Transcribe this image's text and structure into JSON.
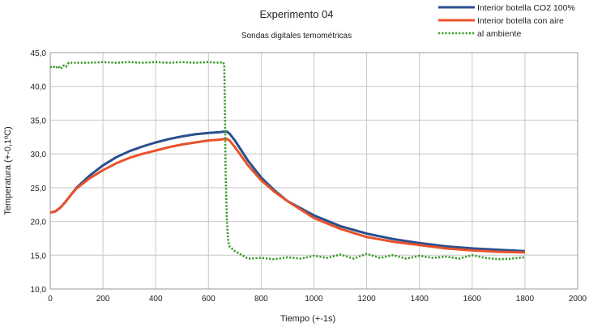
{
  "chart_data": {
    "type": "line",
    "title": "Experimento 04",
    "subtitle": "Sondas digitales temométricas",
    "xlabel": "Tiempo (+-1s)",
    "ylabel": "Temperatura (+-0,1ºC)",
    "xlim": [
      0,
      2000
    ],
    "ylim": [
      10,
      45
    ],
    "xticks": [
      0,
      200,
      400,
      600,
      800,
      1000,
      1200,
      1400,
      1600,
      1800,
      2000
    ],
    "xtick_labels": [
      "0",
      "200",
      "400",
      "600",
      "800",
      "1000",
      "1200",
      "1400",
      "1600",
      "1800",
      "2000"
    ],
    "yticks": [
      10,
      15,
      20,
      25,
      30,
      35,
      40,
      45
    ],
    "ytick_labels": [
      "10,0",
      "15,0",
      "20,0",
      "25,0",
      "30,0",
      "35,0",
      "40,0",
      "45,0"
    ],
    "grid": true,
    "legend_position": "top-right",
    "series": [
      {
        "name": "Interior botella CO2 100%",
        "color": "#2a4f8f",
        "style": "solid",
        "x": [
          0,
          20,
          40,
          60,
          80,
          100,
          150,
          200,
          250,
          300,
          350,
          400,
          450,
          500,
          550,
          600,
          640,
          660,
          670,
          680,
          700,
          750,
          800,
          850,
          900,
          1000,
          1100,
          1200,
          1300,
          1400,
          1500,
          1600,
          1700,
          1800
        ],
        "y": [
          21.3,
          21.5,
          22.1,
          23.0,
          24.0,
          25.0,
          26.8,
          28.3,
          29.5,
          30.4,
          31.1,
          31.7,
          32.2,
          32.6,
          32.9,
          33.1,
          33.2,
          33.3,
          33.3,
          33.0,
          32.0,
          29.0,
          26.5,
          24.6,
          23.0,
          20.9,
          19.3,
          18.2,
          17.4,
          16.8,
          16.3,
          16.0,
          15.8,
          15.6
        ]
      },
      {
        "name": "Interior botella con aire",
        "color": "#e8522a",
        "style": "solid",
        "x": [
          0,
          20,
          40,
          60,
          80,
          100,
          150,
          200,
          250,
          300,
          350,
          400,
          450,
          500,
          550,
          600,
          640,
          660,
          670,
          680,
          700,
          750,
          800,
          850,
          900,
          1000,
          1100,
          1200,
          1300,
          1400,
          1500,
          1600,
          1700,
          1800
        ],
        "y": [
          21.3,
          21.5,
          22.1,
          23.0,
          24.0,
          24.9,
          26.4,
          27.6,
          28.6,
          29.4,
          30.0,
          30.5,
          31.0,
          31.4,
          31.7,
          32.0,
          32.1,
          32.2,
          32.2,
          32.0,
          31.0,
          28.3,
          26.1,
          24.4,
          23.0,
          20.5,
          18.9,
          17.7,
          17.0,
          16.5,
          16.0,
          15.7,
          15.5,
          15.4
        ]
      },
      {
        "name": "al ambiente",
        "color": "#3a9a2a",
        "style": "dotted",
        "x": [
          0,
          10,
          20,
          30,
          40,
          50,
          60,
          70,
          100,
          150,
          200,
          250,
          300,
          350,
          400,
          450,
          500,
          550,
          600,
          640,
          655,
          660,
          662,
          665,
          670,
          675,
          680,
          700,
          750,
          800,
          850,
          900,
          950,
          1000,
          1050,
          1100,
          1150,
          1200,
          1250,
          1300,
          1350,
          1400,
          1450,
          1500,
          1550,
          1600,
          1650,
          1700,
          1750,
          1800
        ],
        "y": [
          42.8,
          43.0,
          42.7,
          43.0,
          42.6,
          43.1,
          42.9,
          43.5,
          43.5,
          43.5,
          43.6,
          43.5,
          43.6,
          43.5,
          43.6,
          43.5,
          43.6,
          43.5,
          43.6,
          43.5,
          43.6,
          43.2,
          38.0,
          27.0,
          20.0,
          17.0,
          16.3,
          15.6,
          14.5,
          14.6,
          14.4,
          14.7,
          14.5,
          14.9,
          14.6,
          15.1,
          14.5,
          15.2,
          14.6,
          15.0,
          14.5,
          14.9,
          14.6,
          14.8,
          14.5,
          15.0,
          14.6,
          14.4,
          14.5,
          14.7
        ]
      }
    ]
  }
}
